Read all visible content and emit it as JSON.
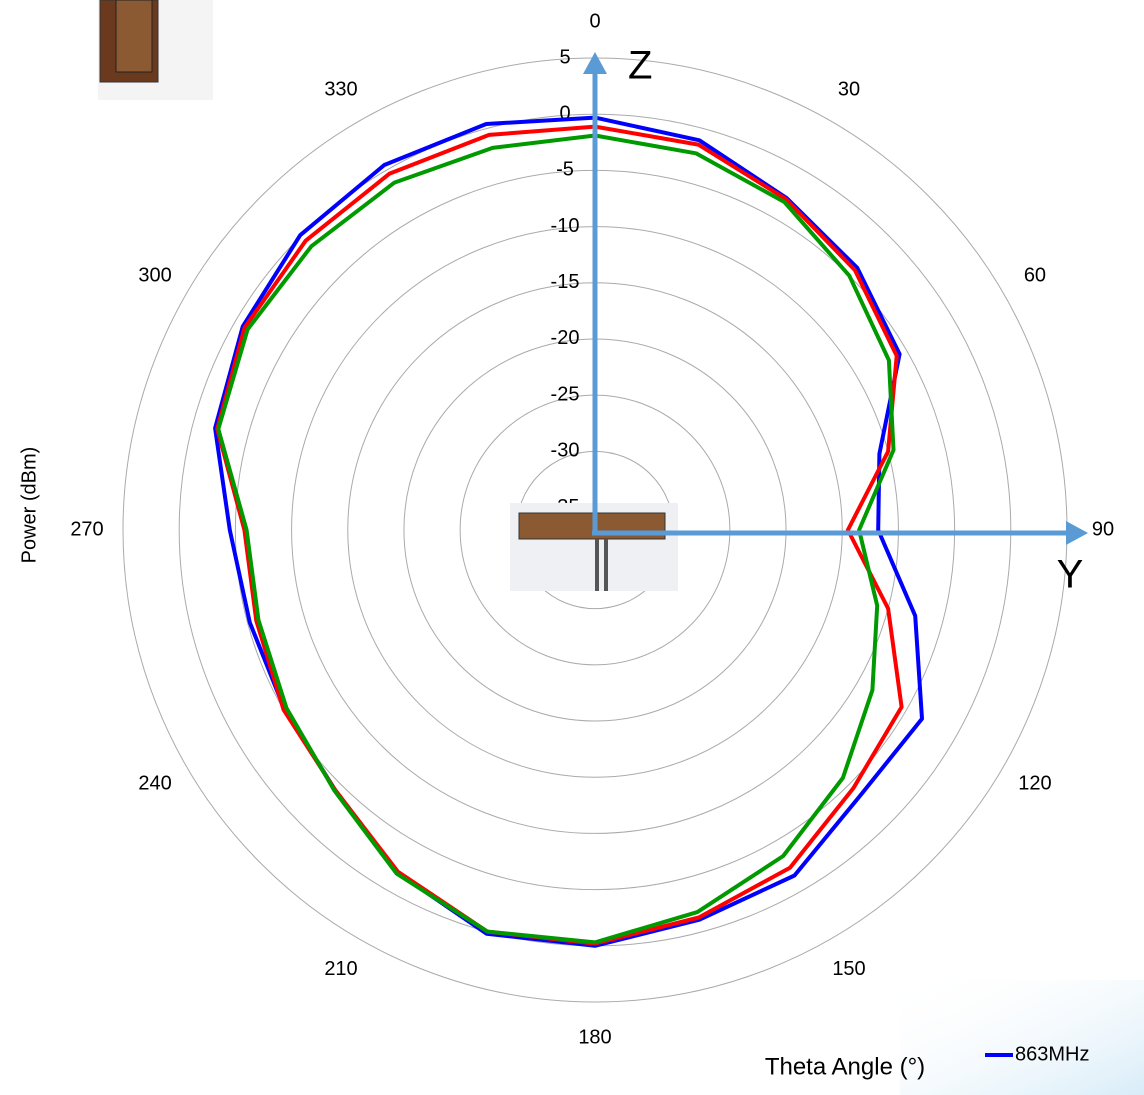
{
  "chart_data": {
    "type": "radar",
    "theta": [
      0,
      15,
      30,
      45,
      60,
      75,
      90,
      105,
      120,
      135,
      150,
      165,
      180,
      195,
      210,
      225,
      240,
      255,
      270,
      285,
      300,
      315,
      330,
      345
    ],
    "thetaticks": [
      0,
      30,
      60,
      90,
      120,
      150,
      180,
      210,
      240,
      270,
      300,
      330
    ],
    "rlim": [
      -37,
      5
    ],
    "rticks": [
      5,
      0,
      -5,
      -10,
      -15,
      -20,
      -25,
      -30,
      -35
    ],
    "grid": true,
    "xlabel": "Theta  Angle (°)",
    "ylabel": "Power (dBm)",
    "annotations": [
      "Z",
      "Y"
    ],
    "legend": "bottom-right",
    "series": [
      {
        "name": "863MHz",
        "color": "#0000ff",
        "values": [
          -0.3,
          -1.1,
          -2.9,
          -4.0,
          -5.7,
          -10.8,
          -11.8,
          -7.5,
          -3.4,
          -3.6,
          -1.5,
          -1.1,
          0,
          0.2,
          -1.8,
          -4.3,
          -5.1,
          -5.2,
          -4.5,
          -2.0,
          -0.8,
          0.1,
          0.5,
          0.4
        ]
      },
      {
        "color": "#ff0000",
        "values": [
          -1.1,
          -1.5,
          -3.0,
          -4.3,
          -6.0,
          -10,
          -14.5,
          -10,
          -5.5,
          -4.5,
          -2.3,
          -1.3,
          -0.2,
          0,
          -1.9,
          -4.3,
          -5.0,
          -5.8,
          -5.8,
          -2.2,
          -1.0,
          -0.6,
          -0.4,
          -0.6
        ]
      },
      {
        "color": "#009900",
        "values": [
          -1.9,
          -2.3,
          -3.3,
          -5.0,
          -6.8,
          -9.5,
          -13.5,
          -11,
          -8.5,
          -5.8,
          -3.5,
          -1.8,
          -0.3,
          0,
          -1.7,
          -4.2,
          -5.3,
          -6.0,
          -6.0,
          -2.3,
          -1.3,
          -1.3,
          -1.3,
          -1.8
        ]
      }
    ]
  }
}
